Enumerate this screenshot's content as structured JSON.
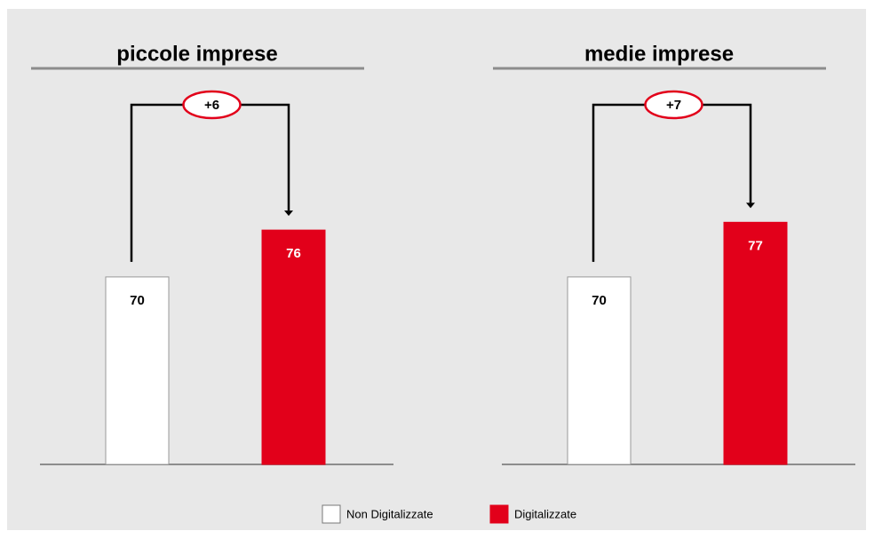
{
  "legend_position": "bottom",
  "chart_data": [
    {
      "type": "bar",
      "title": "piccole imprese",
      "annotation": "+6",
      "series": [
        {
          "name": "Non Digitalizzate",
          "color": "#ffffff",
          "values": [
            70
          ]
        },
        {
          "name": "Digitalizzate",
          "color": "#e2001a",
          "values": [
            76
          ]
        }
      ],
      "ylim": [
        46,
        100
      ]
    },
    {
      "type": "bar",
      "title": "medie imprese",
      "annotation": "+7",
      "series": [
        {
          "name": "Non Digitalizzate",
          "color": "#ffffff",
          "values": [
            70
          ]
        },
        {
          "name": "Digitalizzate",
          "color": "#e2001a",
          "values": [
            77
          ]
        }
      ],
      "ylim": [
        46,
        100
      ]
    }
  ]
}
